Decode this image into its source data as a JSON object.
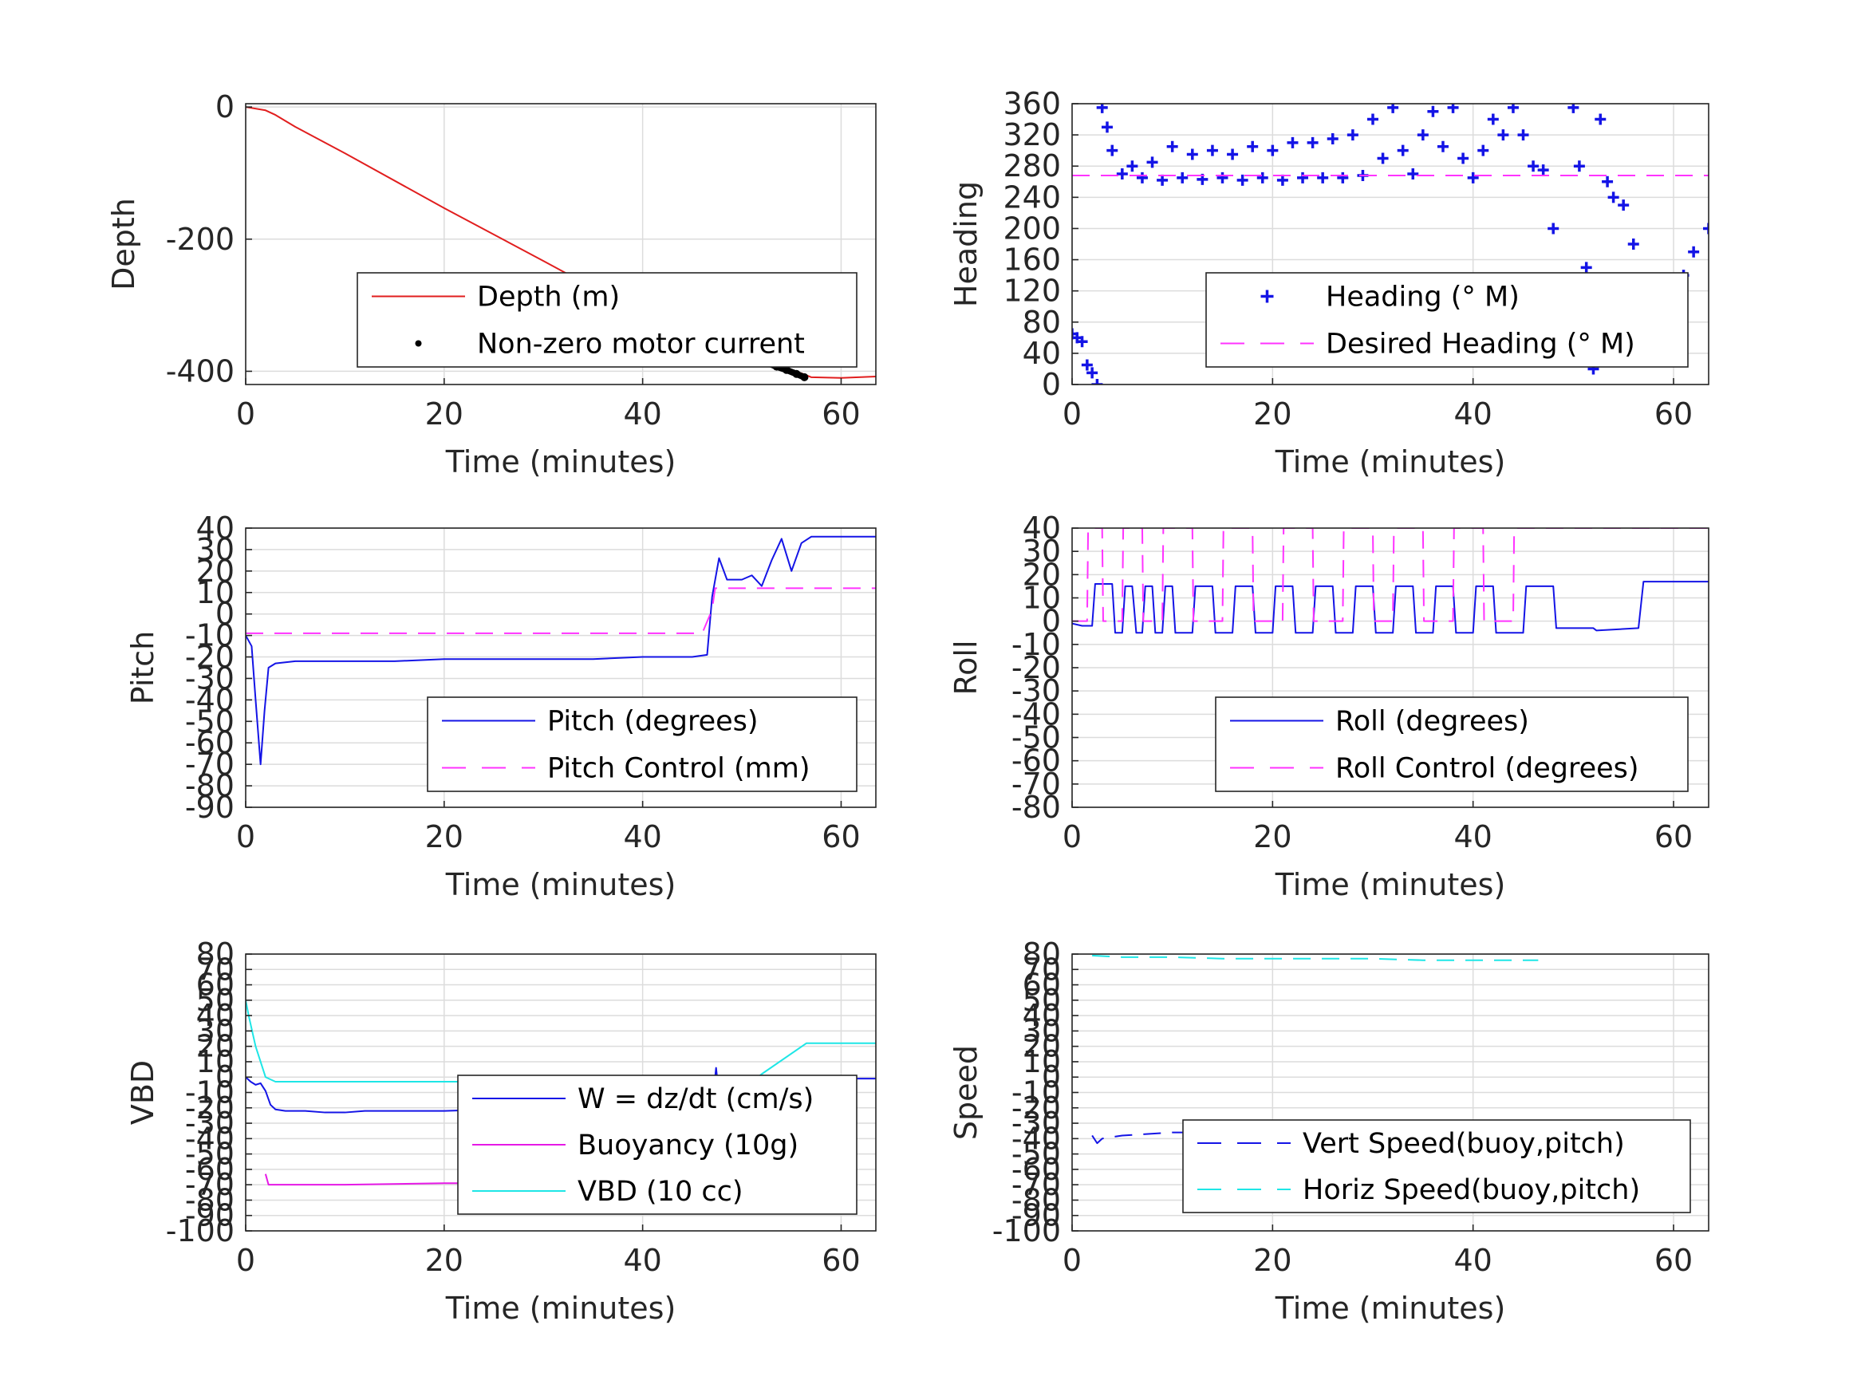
{
  "figure": {
    "background": "#ffffff"
  },
  "chart_data": [
    {
      "id": "depth",
      "type": "line",
      "xlabel": "Time (minutes)",
      "ylabel": "Depth",
      "xlim": [
        0,
        63.5
      ],
      "ylim": [
        -420,
        5
      ],
      "xticks": [
        0,
        20,
        40,
        60
      ],
      "yticks": [
        -400,
        -200,
        0
      ],
      "grid": true,
      "legend_position": "lower-right",
      "series": [
        {
          "name": "Depth (m)",
          "style": "solid",
          "color": "#e11e1e",
          "x": [
            0,
            2,
            3,
            5,
            10,
            20,
            30,
            40,
            47,
            52,
            56,
            57,
            60,
            63.5
          ],
          "y": [
            0,
            -5,
            -12,
            -30,
            -70,
            -153,
            -233,
            -314,
            -370,
            -385,
            -403,
            -409,
            -410,
            -408
          ]
        },
        {
          "name": "Non-zero motor current",
          "style": "dots",
          "color": "#000000",
          "x": [
            51.5,
            52.5,
            53.5,
            54.5,
            55.5,
            56.3
          ],
          "y": [
            -382,
            -387,
            -393,
            -398,
            -404,
            -409
          ]
        }
      ]
    },
    {
      "id": "heading",
      "type": "scatter",
      "xlabel": "Time (minutes)",
      "ylabel": "Heading",
      "xlim": [
        0,
        63.5
      ],
      "ylim": [
        0,
        360
      ],
      "xticks": [
        0,
        20,
        40,
        60
      ],
      "yticks": [
        0,
        40,
        80,
        120,
        160,
        200,
        240,
        280,
        320,
        360
      ],
      "grid": true,
      "legend_position": "lower-right",
      "series": [
        {
          "name": "Heading (° M)",
          "style": "plus",
          "color": "#1414e6",
          "x": [
            0,
            0.5,
            1,
            1.5,
            2,
            2.5,
            3,
            3.5,
            4,
            5,
            6,
            7,
            8,
            9,
            10,
            11,
            12,
            13,
            14,
            15,
            16,
            17,
            18,
            19,
            20,
            21,
            22,
            23,
            24,
            25,
            26,
            27,
            28,
            29,
            30,
            31,
            32,
            33,
            34,
            35,
            36,
            37,
            38,
            39,
            40,
            41,
            42,
            43,
            44,
            45,
            46,
            47,
            48,
            48.7,
            49.4,
            50,
            50.6,
            51.3,
            52,
            52.7,
            53.4,
            54,
            55,
            56,
            57,
            58,
            59,
            60,
            61,
            62,
            63.5
          ],
          "y": [
            65,
            60,
            55,
            25,
            15,
            0,
            355,
            330,
            300,
            270,
            280,
            265,
            285,
            262,
            305,
            265,
            295,
            263,
            300,
            265,
            295,
            262,
            305,
            265,
            300,
            262,
            310,
            265,
            310,
            265,
            315,
            265,
            320,
            268,
            340,
            290,
            355,
            300,
            270,
            320,
            350,
            305,
            355,
            290,
            265,
            300,
            340,
            320,
            355,
            320,
            280,
            275,
            200,
            120,
            40,
            355,
            280,
            150,
            20,
            340,
            260,
            240,
            230,
            180,
            110,
            90,
            95,
            115,
            140,
            170,
            200
          ]
        },
        {
          "name": "Desired Heading (° M)",
          "style": "dashed",
          "color": "#ff33ff",
          "x": [
            0,
            63.5
          ],
          "y": [
            268,
            268
          ]
        }
      ]
    },
    {
      "id": "pitch",
      "type": "line",
      "xlabel": "Time (minutes)",
      "ylabel": "Pitch",
      "xlim": [
        0,
        63.5
      ],
      "ylim": [
        -90,
        40
      ],
      "xticks": [
        0,
        20,
        40,
        60
      ],
      "yticks": [
        -90,
        -80,
        -70,
        -60,
        -50,
        -40,
        -30,
        -20,
        -10,
        0,
        10,
        20,
        30,
        40
      ],
      "grid": true,
      "legend_position": "lower-right",
      "series": [
        {
          "name": "Pitch (degrees)",
          "style": "solid",
          "color": "#1414e6",
          "x": [
            0,
            0.6,
            1,
            1.5,
            1.9,
            2.3,
            3,
            5,
            10,
            15,
            20,
            25,
            30,
            35,
            40,
            45,
            46.5,
            47,
            47.7,
            48.5,
            50,
            51,
            52,
            53,
            54,
            55,
            56,
            57,
            60,
            63.5
          ],
          "y": [
            -10,
            -15,
            -40,
            -70,
            -45,
            -25,
            -23,
            -22,
            -22,
            -22,
            -21,
            -21,
            -21,
            -21,
            -20,
            -20,
            -19,
            8,
            26,
            16,
            16,
            18,
            13,
            25,
            35,
            20,
            33,
            36,
            36,
            36
          ]
        },
        {
          "name": "Pitch Control (mm)",
          "style": "dashed",
          "color": "#ff33ff",
          "x": [
            0,
            46,
            47,
            47.3,
            63.5
          ],
          "y": [
            -9,
            -9,
            2,
            12,
            12
          ]
        }
      ]
    },
    {
      "id": "roll",
      "type": "line",
      "xlabel": "Time (minutes)",
      "ylabel": "Roll",
      "xlim": [
        0,
        63.5
      ],
      "ylim": [
        -80,
        40
      ],
      "xticks": [
        0,
        20,
        40,
        60
      ],
      "yticks": [
        -80,
        -70,
        -60,
        -50,
        -40,
        -30,
        -20,
        -10,
        0,
        10,
        20,
        30,
        40
      ],
      "grid": true,
      "legend_position": "lower-right",
      "series": [
        {
          "name": "Roll (degrees)",
          "style": "solid",
          "color": "#1414e6",
          "x": [
            0,
            1,
            2,
            2.3,
            4,
            4.3,
            5,
            5.3,
            6,
            6.4,
            7,
            7.3,
            8,
            8.3,
            9,
            9.3,
            10,
            10.3,
            12,
            12.3,
            14,
            14.3,
            16,
            16.3,
            18,
            18.3,
            20,
            20.3,
            22,
            22.3,
            24,
            24.3,
            26,
            26.3,
            28,
            28.3,
            30,
            30.3,
            32,
            32.3,
            34,
            34.3,
            36,
            36.3,
            38,
            38.3,
            40,
            40.3,
            42,
            42.3,
            45,
            45.3,
            48,
            48.3,
            52,
            52.3,
            56.5,
            57,
            63.5
          ],
          "y": [
            -1,
            -2,
            -2,
            16,
            16,
            -5,
            -5,
            15,
            15,
            -5,
            -5,
            15,
            15,
            -5,
            -5,
            15,
            15,
            -5,
            -5,
            15,
            15,
            -5,
            -5,
            15,
            15,
            -5,
            -5,
            15,
            15,
            -5,
            -5,
            15,
            15,
            -5,
            -5,
            15,
            15,
            -5,
            -5,
            15,
            15,
            -5,
            -5,
            15,
            15,
            -5,
            -5,
            15,
            15,
            -5,
            -5,
            15,
            15,
            -3,
            -3,
            -4,
            -3,
            17,
            17
          ]
        },
        {
          "name": "Roll Control (degrees)",
          "style": "dashed",
          "color": "#ff33ff",
          "x": [
            0,
            1.5,
            1.6,
            3,
            3.1,
            5,
            5.1,
            7,
            7.1,
            9,
            9.1,
            12,
            12.1,
            15,
            15.1,
            18,
            18.1,
            21,
            21.1,
            24,
            24.1,
            27,
            27.1,
            30,
            30.1,
            32,
            32.1,
            35,
            35.1,
            38,
            38.1,
            41,
            41.1,
            44,
            44.1,
            47,
            47.1,
            63.5
          ],
          "y": [
            0,
            0,
            40,
            40,
            0,
            0,
            40,
            40,
            0,
            0,
            40,
            40,
            0,
            0,
            40,
            40,
            0,
            0,
            40,
            40,
            0,
            0,
            40,
            40,
            0,
            0,
            40,
            40,
            0,
            0,
            40,
            40,
            0,
            0,
            40,
            40,
            40,
            40
          ]
        }
      ]
    },
    {
      "id": "vbd",
      "type": "line",
      "xlabel": "Time (minutes)",
      "ylabel": "VBD",
      "xlim": [
        0,
        63.5
      ],
      "ylim": [
        -100,
        80
      ],
      "xticks": [
        0,
        20,
        40,
        60
      ],
      "yticks": [
        -100,
        -90,
        -80,
        -70,
        -60,
        -50,
        -40,
        -30,
        -20,
        -10,
        0,
        10,
        20,
        30,
        40,
        50,
        60,
        70,
        80
      ],
      "grid": true,
      "legend_position": "lower-right",
      "series": [
        {
          "name": "W = dz/dt (cm/s)",
          "style": "solid",
          "color": "#1414e6",
          "x": [
            0,
            0.5,
            1,
            1.5,
            2,
            2.5,
            3,
            4,
            6,
            8,
            10,
            12,
            14,
            16,
            20,
            25,
            30,
            35,
            40,
            45,
            47,
            47.4,
            47.8,
            50,
            55,
            57,
            60,
            63.5
          ],
          "y": [
            0,
            -3,
            -5,
            -4,
            -9,
            -18,
            -21,
            -22,
            -22,
            -23,
            -23,
            -22,
            -22,
            -22,
            -22,
            -21,
            -21,
            -21,
            -20,
            -20,
            -19,
            6,
            -18,
            -17,
            -12,
            -4,
            -1,
            -1
          ]
        },
        {
          "name": "Buoyancy (10g)",
          "style": "solid",
          "color": "#e619e6",
          "x": [
            2,
            2.3,
            3,
            10,
            20,
            30,
            40,
            45,
            46.5
          ],
          "y": [
            -63,
            -70,
            -70,
            -70,
            -69,
            -69,
            -68,
            -68,
            -68
          ]
        },
        {
          "name": "VBD (10 cc)",
          "style": "solid",
          "color": "#1ee6e6",
          "x": [
            0,
            0.3,
            1,
            2,
            3,
            10,
            20,
            30,
            40,
            51,
            52,
            56.5,
            63.5
          ],
          "y": [
            50,
            40,
            20,
            0,
            -3,
            -3,
            -3,
            -3,
            -3,
            -3,
            2,
            22,
            22
          ]
        }
      ]
    },
    {
      "id": "speed",
      "type": "line",
      "xlabel": "Time (minutes)",
      "ylabel": "Speed",
      "xlim": [
        0,
        63.5
      ],
      "ylim": [
        -100,
        80
      ],
      "xticks": [
        0,
        20,
        40,
        60
      ],
      "yticks": [
        -100,
        -90,
        -80,
        -70,
        -60,
        -50,
        -40,
        -30,
        -20,
        -10,
        0,
        10,
        20,
        30,
        40,
        50,
        60,
        70,
        80
      ],
      "grid": true,
      "legend_position": "lower-right",
      "series": [
        {
          "name": "Vert Speed(buoy,pitch)",
          "style": "dashed",
          "color": "#1414e6",
          "x": [
            2,
            2.5,
            3,
            5,
            10,
            15,
            20,
            25,
            30,
            35,
            40,
            45,
            46
          ],
          "y": [
            -38,
            -43,
            -40,
            -38,
            -36,
            -36,
            -36,
            -36,
            -35,
            -35,
            -34,
            -34,
            -34
          ]
        },
        {
          "name": "Horiz Speed(buoy,pitch)",
          "style": "dashed",
          "color": "#1ee6e6",
          "x": [
            2,
            5,
            10,
            15,
            20,
            25,
            30,
            35,
            40,
            45,
            46.5
          ],
          "y": [
            79,
            78,
            78,
            77,
            77,
            77,
            77,
            76,
            76,
            76,
            76
          ]
        }
      ]
    }
  ]
}
